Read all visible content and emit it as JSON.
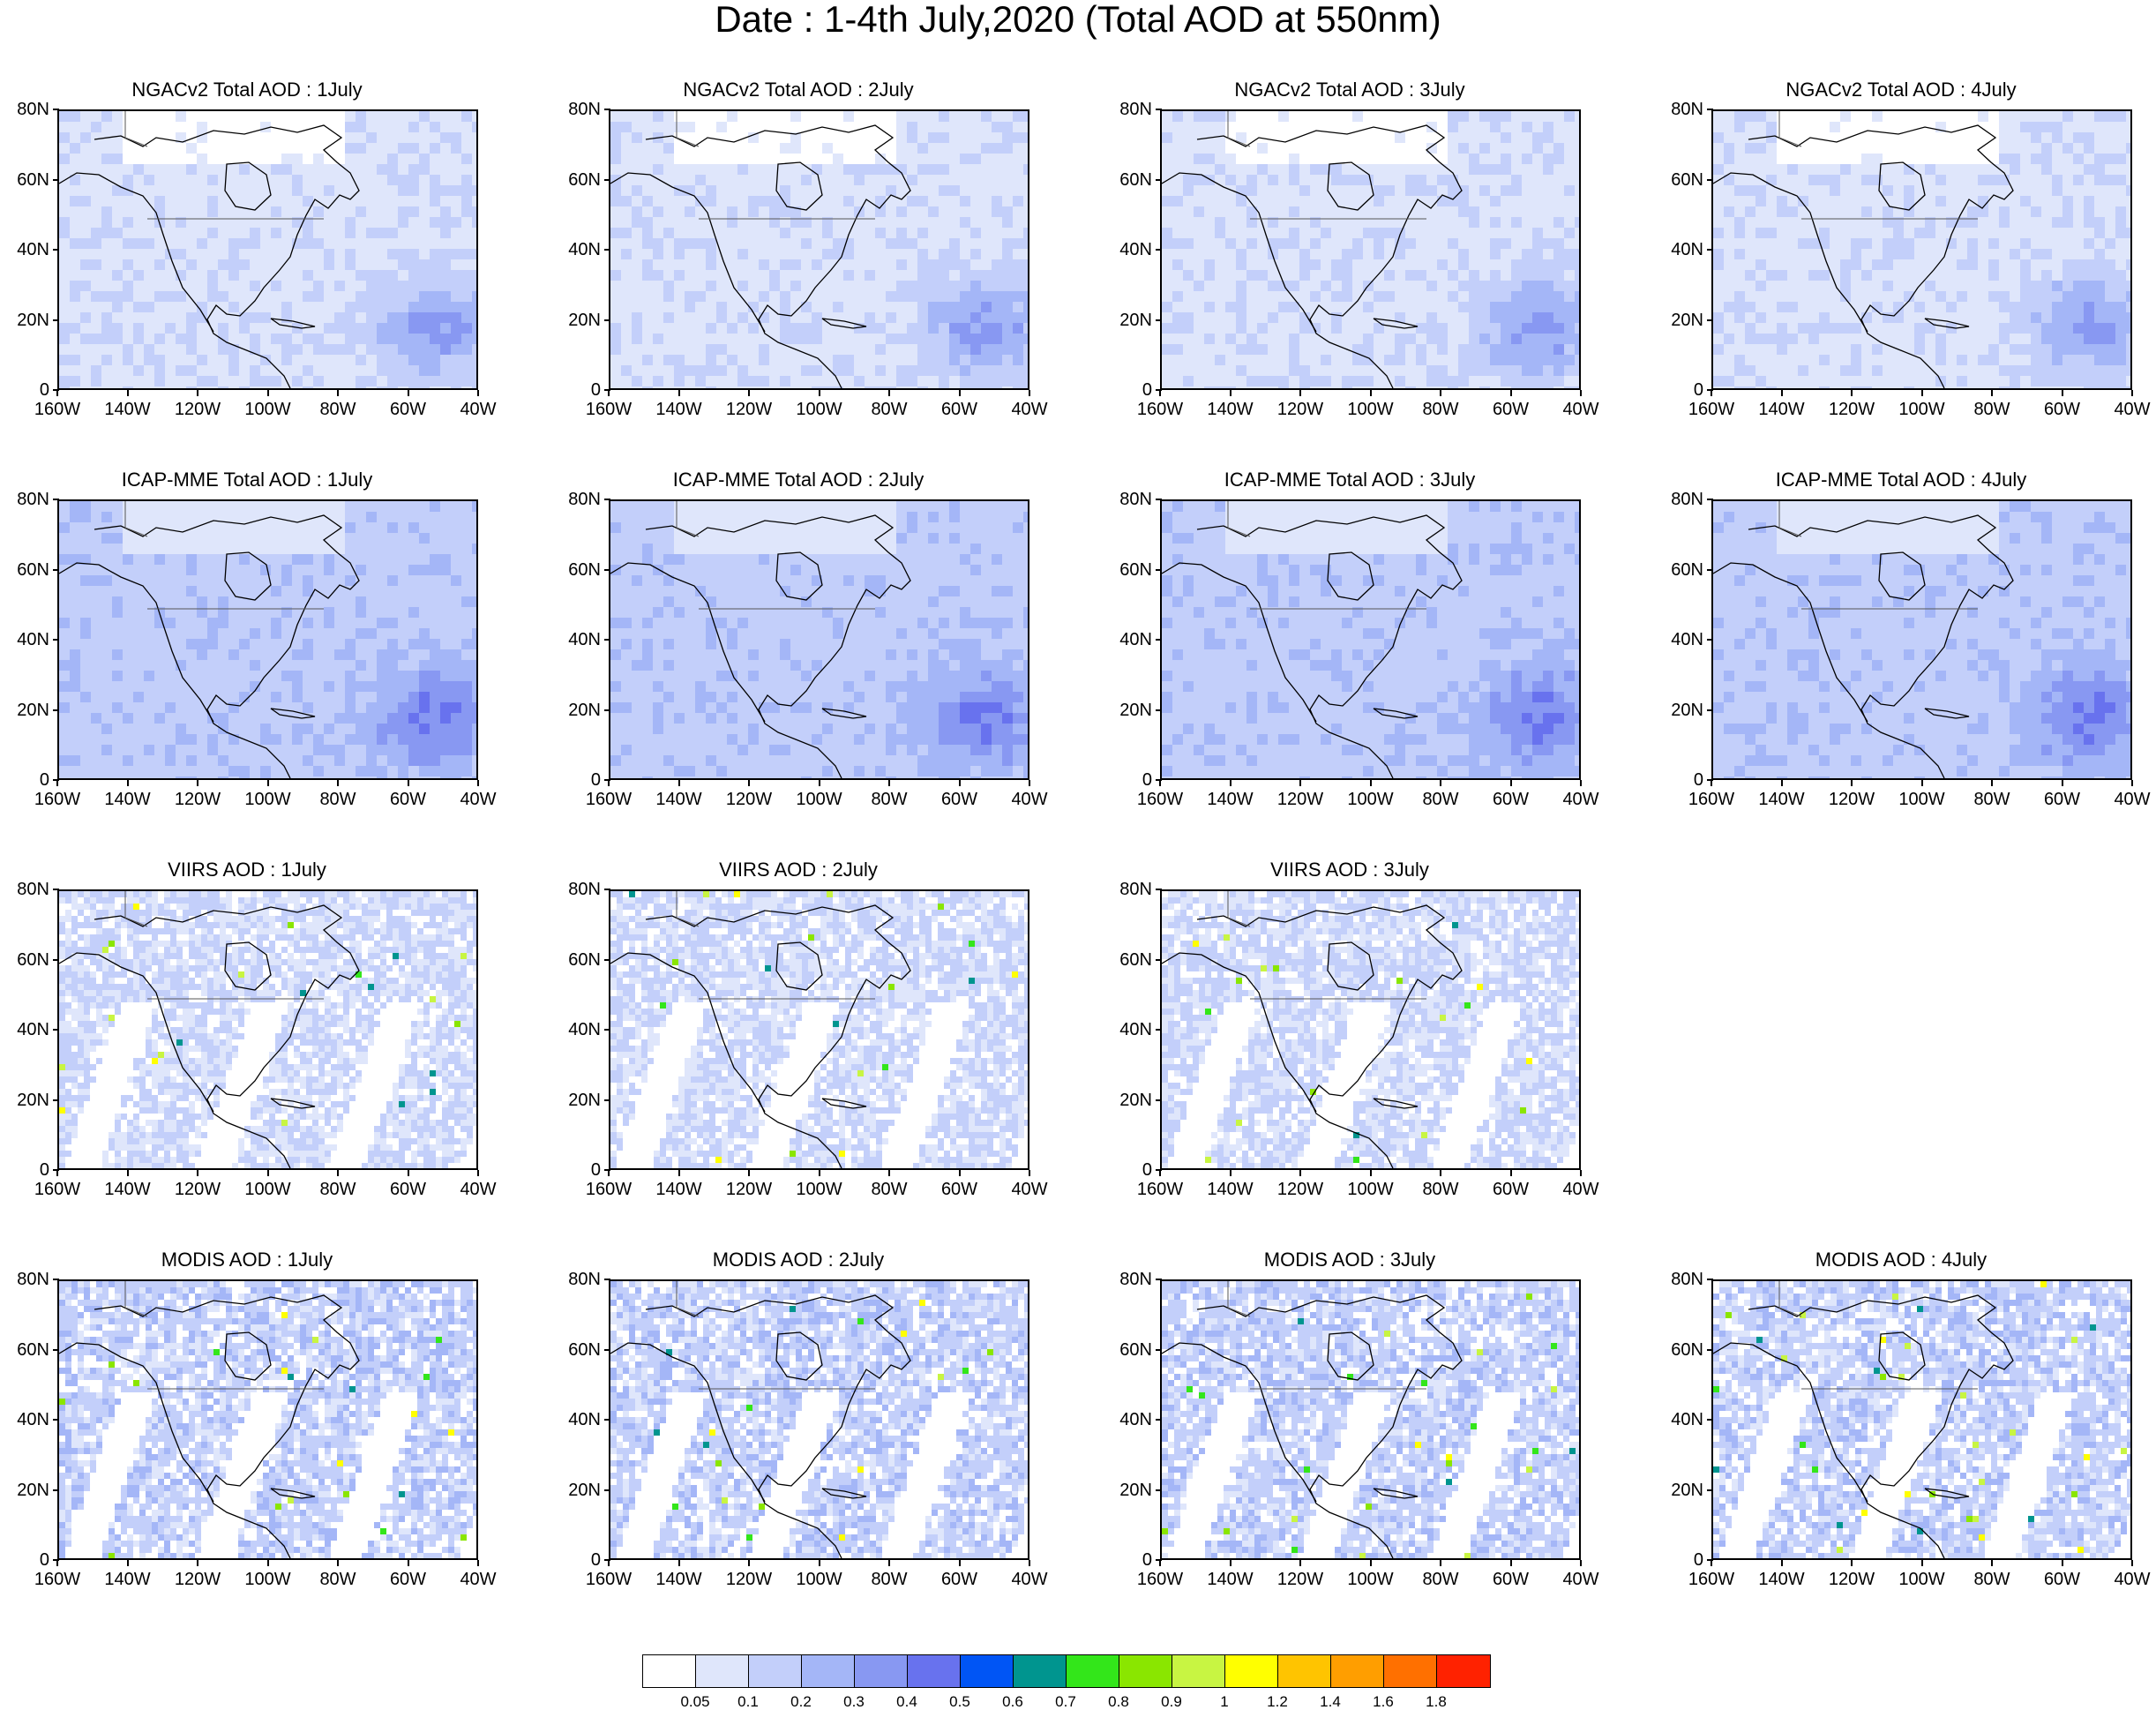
{
  "title": "Date : 1-4th July,2020 (Total AOD at 550nm)",
  "y_ticks": [
    "80N",
    "60N",
    "40N",
    "20N",
    "0"
  ],
  "x_ticks": [
    "160W",
    "140W",
    "120W",
    "100W",
    "80W",
    "60W",
    "40W"
  ],
  "panels": [
    {
      "title": "NGACv2 Total AOD : 1July",
      "kind": "model_smooth",
      "level": 1
    },
    {
      "title": "NGACv2 Total AOD : 2July",
      "kind": "model_smooth",
      "level": 1
    },
    {
      "title": "NGACv2 Total AOD : 3July",
      "kind": "model_smooth",
      "level": 1
    },
    {
      "title": "NGACv2 Total AOD : 4July",
      "kind": "model_smooth",
      "level": 1
    },
    {
      "title": "ICAP-MME Total AOD : 1July",
      "kind": "model_smooth",
      "level": 2
    },
    {
      "title": "ICAP-MME Total AOD : 2July",
      "kind": "model_smooth",
      "level": 2
    },
    {
      "title": "ICAP-MME Total AOD : 3July",
      "kind": "model_smooth",
      "level": 2
    },
    {
      "title": "ICAP-MME Total AOD : 4July",
      "kind": "model_smooth",
      "level": 2
    },
    {
      "title": "VIIRS AOD : 1July",
      "kind": "satellite_swath",
      "level": 1
    },
    {
      "title": "VIIRS AOD : 2July",
      "kind": "satellite_swath",
      "level": 1
    },
    {
      "title": "VIIRS AOD : 3July",
      "kind": "satellite_swath",
      "level": 1
    },
    {
      "title": "MODIS AOD : 1July",
      "kind": "satellite_swath",
      "level": 2
    },
    {
      "title": "MODIS AOD : 2July",
      "kind": "satellite_swath",
      "level": 2
    },
    {
      "title": "MODIS AOD : 3July",
      "kind": "satellite_swath",
      "level": 2
    },
    {
      "title": "MODIS AOD : 4July",
      "kind": "satellite_swath",
      "level": 2
    }
  ],
  "colorbar": {
    "colors": [
      "#ffffff",
      "#dfe6fb",
      "#c3cffa",
      "#a4b6f7",
      "#8898f2",
      "#6872ee",
      "#0055f5",
      "#00958f",
      "#33e61a",
      "#8ae600",
      "#c8f542",
      "#ffff00",
      "#ffc400",
      "#ff9e00",
      "#ff7000",
      "#ff2200"
    ],
    "labels": [
      "0.05",
      "0.1",
      "0.2",
      "0.3",
      "0.4",
      "0.5",
      "0.6",
      "0.7",
      "0.8",
      "0.9",
      "1",
      "1.2",
      "1.4",
      "1.6",
      "1.8"
    ]
  }
}
